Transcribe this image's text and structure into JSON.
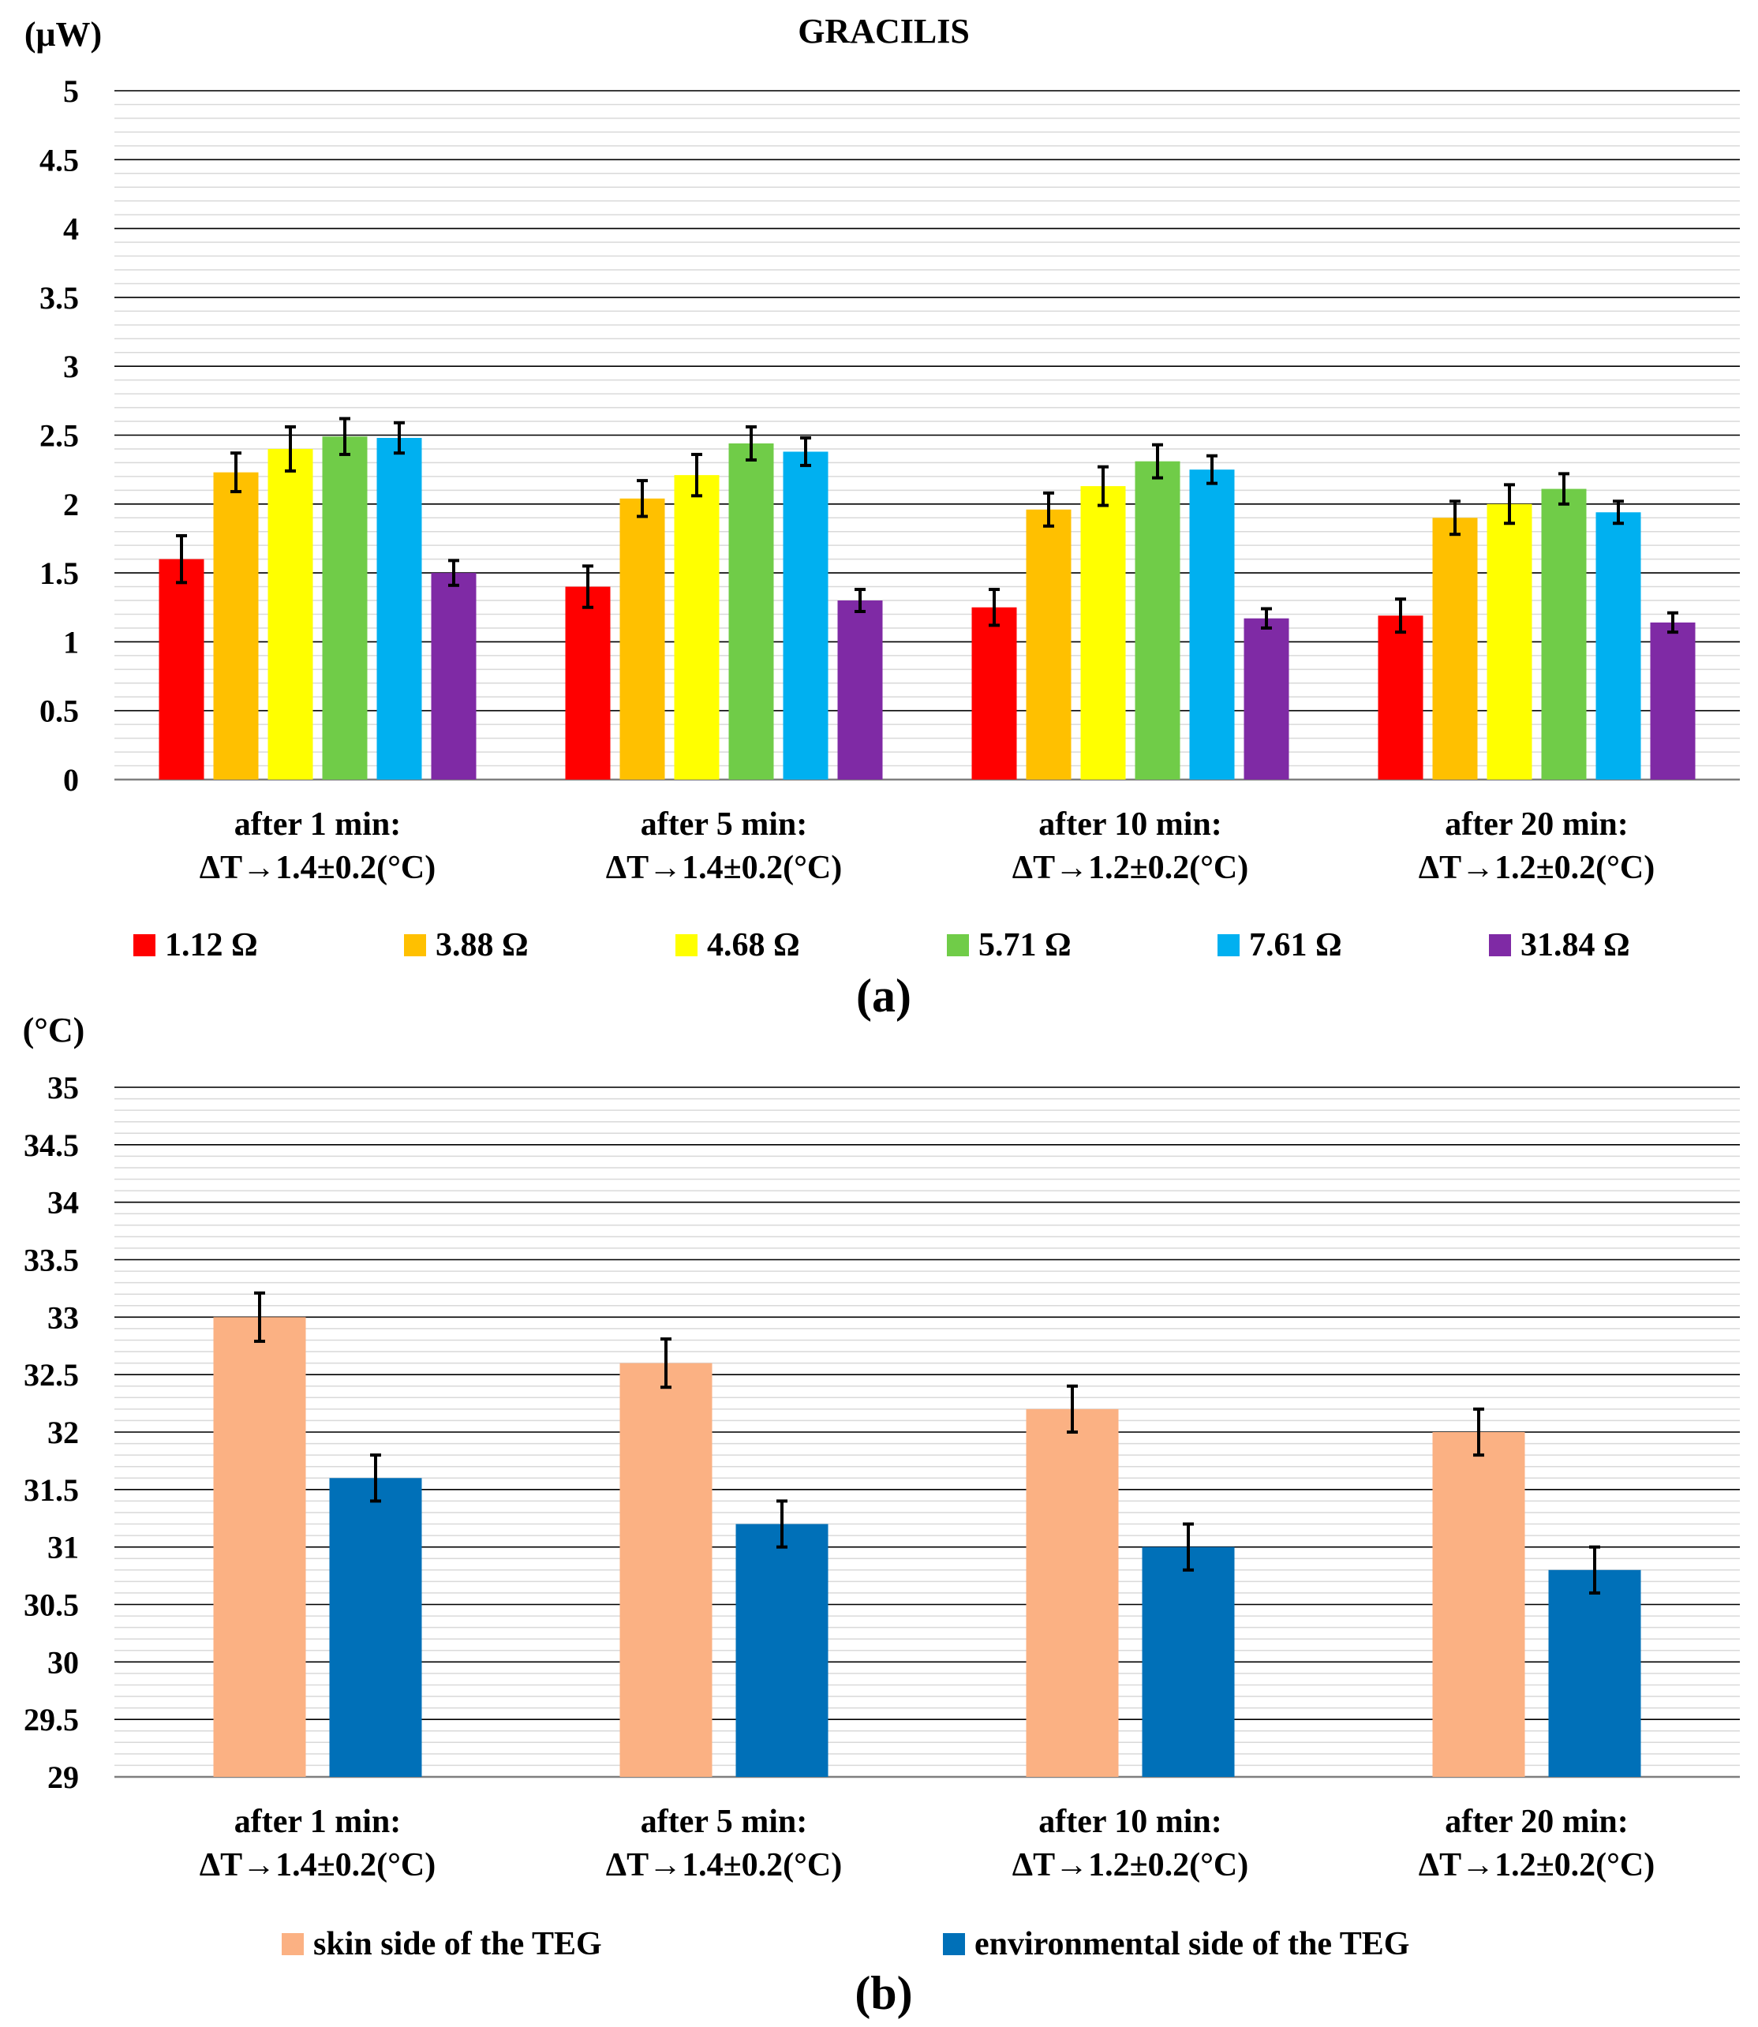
{
  "chart_data": [
    {
      "id": "a",
      "type": "bar",
      "title": "GRACILIS",
      "yunit": "(μW)",
      "panel_label": "(a)",
      "ylim": [
        0,
        5
      ],
      "yticks": [
        "0",
        "0.5",
        "1",
        "1.5",
        "2",
        "2.5",
        "3",
        "3.5",
        "4",
        "4.5",
        "5"
      ],
      "categories": [
        [
          "after 1 min:",
          "ΔT→1.4±0.2(°C)"
        ],
        [
          "after 5 min:",
          "ΔT→1.4±0.2(°C)"
        ],
        [
          "after 10 min:",
          "ΔT→1.2±0.2(°C)"
        ],
        [
          "after 20 min:",
          "ΔT→1.2±0.2(°C)"
        ]
      ],
      "series": [
        {
          "name": "1.12 Ω",
          "color": "#ff0000",
          "values": [
            1.6,
            1.4,
            1.25,
            1.19
          ],
          "errors": [
            0.17,
            0.15,
            0.13,
            0.12
          ]
        },
        {
          "name": "3.88 Ω",
          "color": "#ffc000",
          "values": [
            2.23,
            2.04,
            1.96,
            1.9
          ],
          "errors": [
            0.14,
            0.13,
            0.12,
            0.12
          ]
        },
        {
          "name": "4.68 Ω",
          "color": "#ffff00",
          "values": [
            2.4,
            2.21,
            2.13,
            2.0
          ],
          "errors": [
            0.16,
            0.15,
            0.14,
            0.14
          ]
        },
        {
          "name": "5.71 Ω",
          "color": "#70cc48",
          "values": [
            2.49,
            2.44,
            2.31,
            2.11
          ],
          "errors": [
            0.13,
            0.12,
            0.12,
            0.11
          ]
        },
        {
          "name": "7.61 Ω",
          "color": "#00b0f0",
          "values": [
            2.48,
            2.38,
            2.25,
            1.94
          ],
          "errors": [
            0.11,
            0.1,
            0.1,
            0.08
          ]
        },
        {
          "name": "31.84 Ω",
          "color": "#7f2aa5",
          "values": [
            1.5,
            1.3,
            1.17,
            1.14
          ],
          "errors": [
            0.09,
            0.08,
            0.07,
            0.07
          ]
        }
      ]
    },
    {
      "id": "b",
      "type": "bar",
      "yunit": "(°C)",
      "panel_label": "(b)",
      "ylim": [
        29,
        35
      ],
      "yticks": [
        "29",
        "29.5",
        "30",
        "30.5",
        "31",
        "31.5",
        "32",
        "32.5",
        "33",
        "33.5",
        "34",
        "34.5",
        "35"
      ],
      "categories": [
        [
          "after 1 min:",
          "ΔT→1.4±0.2(°C)"
        ],
        [
          "after 5 min:",
          "ΔT→1.4±0.2(°C)"
        ],
        [
          "after 10 min:",
          "ΔT→1.2±0.2(°C)"
        ],
        [
          "after 20 min:",
          "ΔT→1.2±0.2(°C)"
        ]
      ],
      "series": [
        {
          "name": "skin side of the TEG",
          "color": "#fbb183",
          "values": [
            33.0,
            32.6,
            32.2,
            32.0
          ],
          "errors": [
            0.21,
            0.21,
            0.2,
            0.2
          ]
        },
        {
          "name": "environmental side of the TEG",
          "color": "#0070b8",
          "values": [
            31.6,
            31.2,
            31.0,
            30.8
          ],
          "errors": [
            0.2,
            0.2,
            0.2,
            0.2
          ]
        }
      ]
    }
  ]
}
